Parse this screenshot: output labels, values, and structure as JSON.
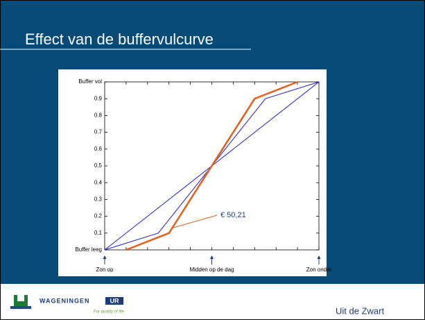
{
  "slide": {
    "title": "Effect van de buffervulcurve",
    "footer": "Uit  de Zwart"
  },
  "logo": {
    "name": "WAGENINGEN",
    "mark": "UR",
    "tagline": "For quality of life"
  },
  "chart_data": {
    "type": "line",
    "xlim": [
      0,
      1
    ],
    "ylim": [
      0,
      1
    ],
    "xticks": [
      0,
      0.1,
      0.2,
      0.3,
      0.4,
      0.5,
      0.6,
      0.7,
      0.8,
      0.9,
      1
    ],
    "xmarkers": [
      {
        "value": 0,
        "label": "Zon op"
      },
      {
        "value": 0.5,
        "label": "Midden op de dag"
      },
      {
        "value": 1,
        "label": "Zon onder"
      }
    ],
    "yticks": [
      {
        "value": 0,
        "label": "Buffer leeg"
      },
      0.1,
      0.2,
      0.3,
      0.4,
      0.5,
      0.6,
      0.7,
      0.8,
      0.9,
      {
        "value": 1,
        "label": "Buffer vol"
      }
    ],
    "series": [
      {
        "color": "#1c1cd6",
        "width": 1,
        "x": [
          0,
          0.3,
          0.7,
          1
        ],
        "values": [
          0,
          0.3,
          0.7,
          1
        ]
      },
      {
        "color": "#1c1cd6",
        "width": 1,
        "x": [
          0,
          0.25,
          0.75,
          1
        ],
        "values": [
          0,
          0.1,
          0.9,
          1
        ]
      },
      {
        "color": "#e0601a",
        "width": 2.5,
        "x": [
          0.1,
          0.3,
          0.7,
          0.9
        ],
        "values": [
          0,
          0.1,
          0.9,
          1
        ]
      }
    ],
    "annotation": "€ 50,21",
    "annotation_color": "#e0601a"
  }
}
